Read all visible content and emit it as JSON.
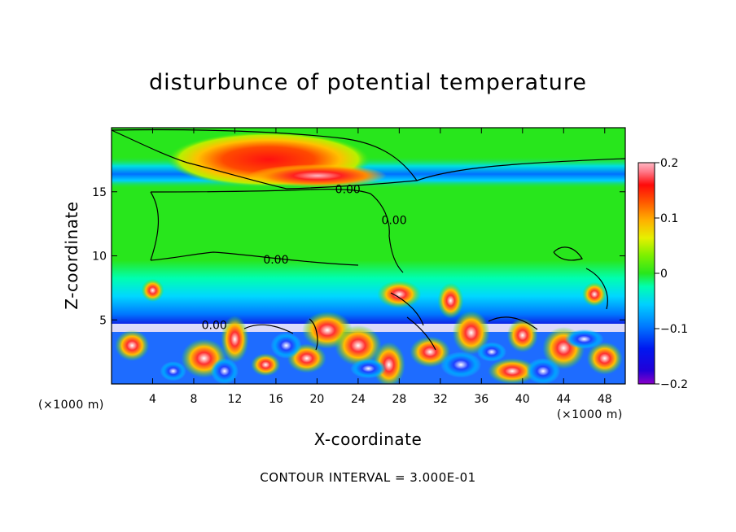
{
  "chart_data": {
    "type": "heatmap",
    "title": "disturbunce of potential temperature",
    "xlabel": "X-coordinate",
    "ylabel": "Z-coordinate",
    "x_unit_label": "(×1000 m)",
    "x_unit_label_right": "(×1000 m)",
    "footer": "CONTOUR INTERVAL = 3.000E-01",
    "xlim": [
      0,
      50
    ],
    "ylim": [
      0,
      20
    ],
    "x_ticks": [
      4,
      8,
      12,
      16,
      20,
      24,
      28,
      32,
      36,
      40,
      44,
      48
    ],
    "y_ticks": [
      5,
      10,
      15
    ],
    "colorbar": {
      "range": [
        -0.2,
        0.2
      ],
      "tick_values": [
        0.2,
        0.1,
        0,
        -0.1,
        -0.2
      ],
      "tick_labels": [
        "0.2",
        "0.1",
        "0",
        "−0.1",
        "−0.2"
      ]
    },
    "contour_labels": [
      {
        "text": "0.00",
        "x": 23,
        "y": 15.2
      },
      {
        "text": "0.00",
        "x": 27.5,
        "y": 12.8
      },
      {
        "text": "0.00",
        "x": 16,
        "y": 9.7
      },
      {
        "text": "0.00",
        "x": 10,
        "y": 4.6
      }
    ],
    "features": [
      {
        "kind": "positive-anomaly",
        "x": 16,
        "z": 17.3,
        "max": 0.17
      },
      {
        "kind": "positive-anomaly",
        "x": 22,
        "z": 16,
        "max": 0.2
      },
      {
        "kind": "negative-band",
        "z": 16.1,
        "min": -0.13
      },
      {
        "kind": "negative-band",
        "z": 4.5,
        "min": -0.18
      },
      {
        "kind": "neutral-layer",
        "z_range": [
          9,
          15
        ],
        "value": 0.0
      }
    ]
  }
}
